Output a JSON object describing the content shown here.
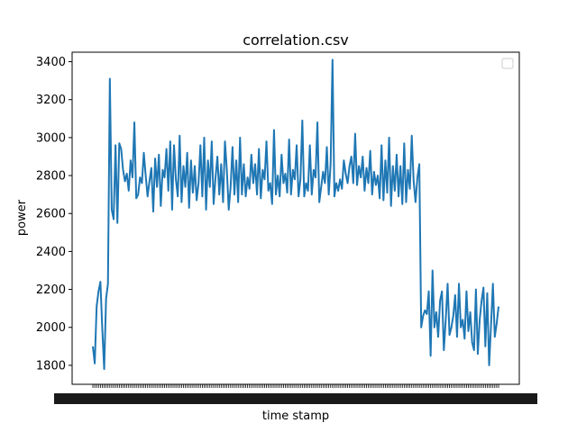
{
  "chart_data": {
    "type": "line",
    "title": "correlation.csv",
    "xlabel": "time stamp",
    "ylabel": "power",
    "ylim": [
      1700,
      3450
    ],
    "yticks": [
      1800,
      2000,
      2200,
      2400,
      2600,
      2800,
      3000,
      3200,
      3400
    ],
    "x_tick_labels": "dense, overlapping and illegible (one tick per sample)",
    "legend": {
      "placement": "upper right",
      "entries": []
    },
    "grid": false,
    "line_color": "#1f77b4",
    "series": [
      {
        "values": [
          1900,
          1810,
          2110,
          2190,
          2240,
          1990,
          1780,
          2150,
          2230,
          3310,
          2620,
          2570,
          2960,
          2550,
          2970,
          2940,
          2830,
          2770,
          2810,
          2720,
          2880,
          2790,
          3080,
          2680,
          2700,
          2790,
          2760,
          2920,
          2800,
          2690,
          2770,
          2840,
          2610,
          2890,
          2740,
          2910,
          2640,
          2830,
          2790,
          2940,
          2720,
          2980,
          2620,
          2960,
          2780,
          2690,
          3010,
          2660,
          2850,
          2740,
          2920,
          2630,
          2880,
          2710,
          2850,
          2670,
          2760,
          2960,
          2690,
          3000,
          2620,
          2880,
          2740,
          2980,
          2650,
          2790,
          2900,
          2700,
          2860,
          2660,
          2980,
          2830,
          2620,
          2740,
          2950,
          2700,
          2880,
          2660,
          3000,
          2700,
          2860,
          2690,
          2790,
          2730,
          2910,
          2760,
          2860,
          2700,
          2940,
          2680,
          2830,
          2780,
          2980,
          2720,
          2760,
          2650,
          3040,
          2700,
          2800,
          2690,
          2910,
          2760,
          2810,
          2710,
          2990,
          2700,
          2830,
          2780,
          2960,
          2690,
          2780,
          3090,
          2690,
          2760,
          2720,
          2960,
          2700,
          2830,
          2790,
          3080,
          2660,
          2740,
          2820,
          2760,
          2950,
          2700,
          2860,
          3410,
          2690,
          2760,
          2720,
          2780,
          2730,
          2880,
          2810,
          2760,
          2850,
          2900,
          2760,
          3020,
          2750,
          2850,
          2790,
          2900,
          2720,
          2840,
          2760,
          2930,
          2700,
          2820,
          2750,
          2800,
          2680,
          2960,
          2670,
          2880,
          2710,
          3000,
          2640,
          2850,
          2720,
          2910,
          2690,
          2850,
          2650,
          2970,
          2660,
          2830,
          2730,
          3010,
          2770,
          2660,
          2790,
          2860,
          2000,
          2060,
          2090,
          2070,
          2190,
          1850,
          2300,
          2000,
          2080,
          1950,
          2140,
          2190,
          1880,
          2040,
          2230,
          1960,
          2000,
          2060,
          2170,
          1950,
          2230,
          2000,
          2040,
          1940,
          2190,
          1980,
          2080,
          1920,
          1880,
          2200,
          1860,
          2040,
          2140,
          2210,
          1900,
          2180,
          1800,
          2010,
          2230,
          1950,
          2020,
          2110
        ]
      }
    ]
  }
}
